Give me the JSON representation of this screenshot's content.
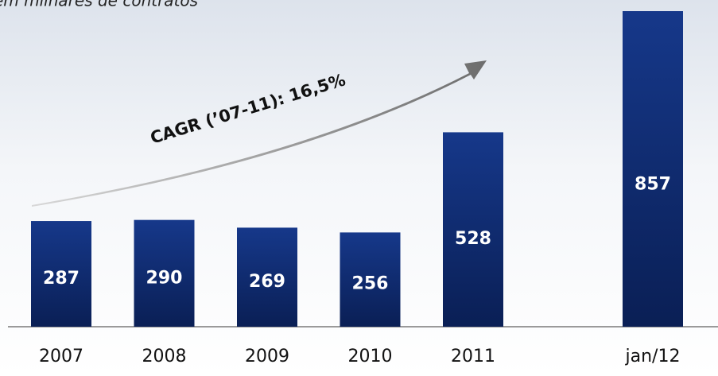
{
  "chart_data": {
    "type": "bar",
    "subtitle": "em milhares de contratos",
    "annotation": "CAGR (’07-11): 16,5%",
    "categories": [
      "2007",
      "2008",
      "2009",
      "2010",
      "2011",
      "jan/12"
    ],
    "values": [
      287,
      290,
      269,
      256,
      528,
      857
    ],
    "color": "#16388a"
  }
}
